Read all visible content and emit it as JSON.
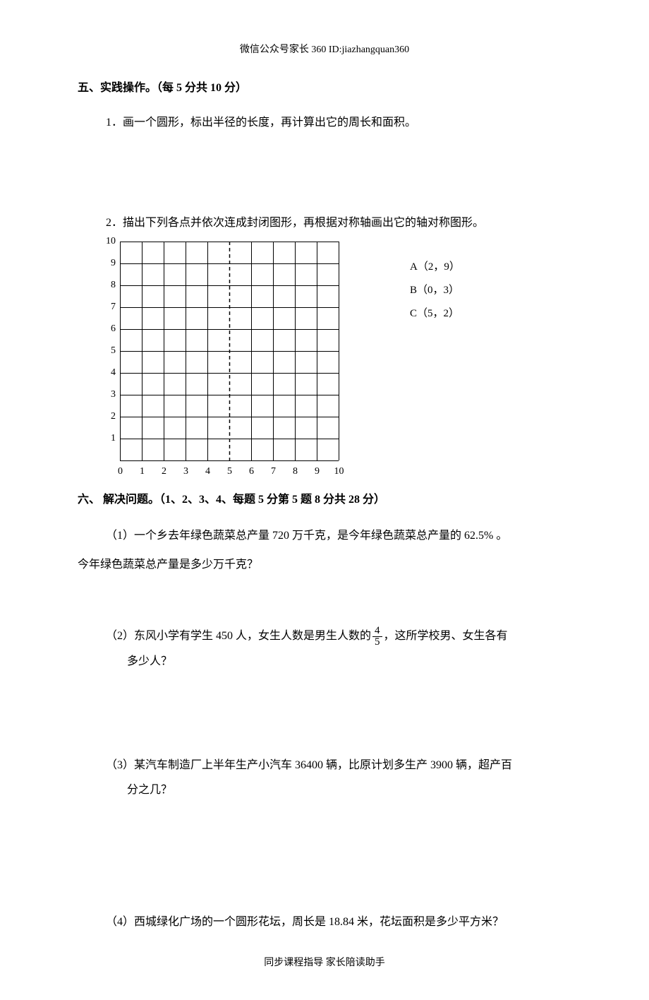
{
  "header": "微信公众号家长 360 ID:jiazhangquan360",
  "footer": "同步课程指导  家长陪读助手",
  "section5": {
    "title": "五、实践操作。（每 5 分共 10 分）",
    "q1": "1．画一个圆形，标出半径的长度，再计算出它的周长和面积。",
    "q2": "2．描出下列各点并依次连成封闭图形，再根据对称轴画出它的轴对称图形。"
  },
  "grid": {
    "cols": 10,
    "rows": 10,
    "cell": 31,
    "dashed_col": 5,
    "stroke": "#000000",
    "y_labels": [
      "10",
      "9",
      "8",
      "7",
      "6",
      "5",
      "4",
      "3",
      "2",
      "1"
    ],
    "x_labels": [
      "0",
      "1",
      "2",
      "3",
      "4",
      "5",
      "6",
      "7",
      "8",
      "9",
      "10"
    ]
  },
  "points": {
    "a": "A（2，9）",
    "b": "B（0，3）",
    "c": "C（5，2）"
  },
  "section6": {
    "title": "六、  解决问题。（1、2、3、4、每题 5 分第 5 题 8 分共 28 分）",
    "q1_a": "（1）一个乡去年绿色蔬菜总产量 720 万千克，是今年绿色蔬菜总产量的   62.5%   。",
    "q1_b": "今年绿色蔬菜总产量是多少万千克？",
    "q2_a_pre": "（2）东风小学有学生 450 人，女生人数是男生人数的",
    "q2_a_post": "，这所学校男、女生各有",
    "q2_b": "多少人？",
    "frac": {
      "num": "4",
      "den": "5"
    },
    "q3_a": "（3）某汽车制造厂上半年生产小汽车 36400 辆，比原计划多生产 3900 辆，超产百",
    "q3_b": "分之几？",
    "q4": "（4）西城绿化广场的一个圆形花坛，周长是 18.84 米，花坛面积是多少平方米？"
  }
}
